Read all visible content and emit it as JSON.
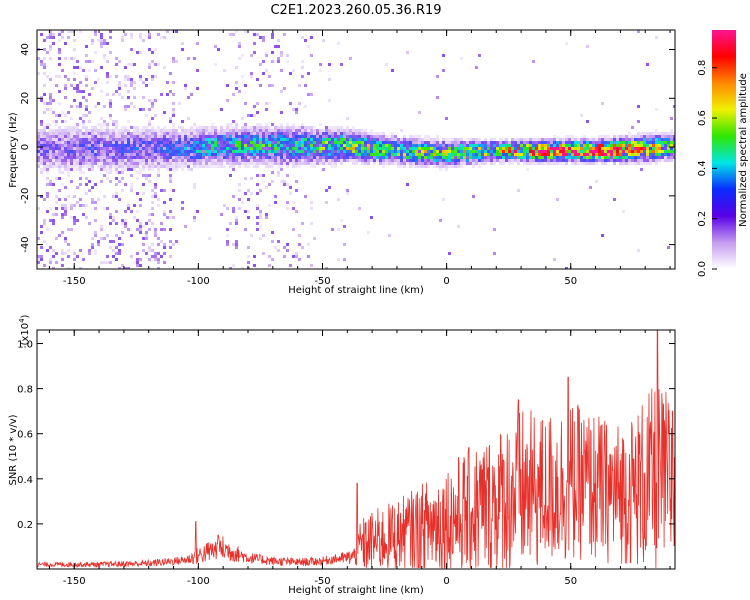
{
  "title": "C2E1.2023.260.05.36.R19",
  "chart_data": [
    {
      "type": "heatmap",
      "xlabel": "Height of straight line (km)",
      "ylabel": "Frequency (Hz)",
      "xlim": [
        -165,
        92
      ],
      "ylim": [
        -50,
        48
      ],
      "xticks": [
        -150,
        -100,
        -50,
        0,
        50
      ],
      "yticks": [
        -40,
        -20,
        0,
        20,
        40
      ],
      "colorbar": {
        "label": "Normalized spectral amplitude",
        "range": [
          0,
          0.95
        ],
        "ticks": [
          "0.0",
          "0.2",
          "0.4",
          "0.6",
          "0.8"
        ],
        "colormap": [
          "#ffffff",
          "#c49bf0",
          "#5a00e6",
          "#0a2bff",
          "#00e5e5",
          "#2ee600",
          "#f0f000",
          "#ff8800",
          "#ff0000",
          "#ff1493"
        ]
      },
      "profile": {
        "x": [
          -165,
          -140,
          -110,
          -90,
          -60,
          -40,
          -20,
          0,
          20,
          40,
          60,
          80,
          92
        ],
        "center_freq_hz": [
          0,
          0,
          0,
          1,
          1,
          1,
          -1,
          -2,
          -1,
          -1,
          -1,
          0,
          1
        ],
        "band_halfwidth_hz": [
          9,
          9,
          8,
          7,
          7,
          6,
          5,
          5,
          4,
          4,
          4,
          5,
          5
        ],
        "peak_amplitude": [
          0.22,
          0.25,
          0.3,
          0.45,
          0.45,
          0.55,
          0.55,
          0.55,
          0.6,
          0.9,
          0.95,
          0.7,
          0.5
        ]
      }
    },
    {
      "type": "line",
      "xlabel": "Height of straight line (km)",
      "ylabel": "SNR (10 * v/v)",
      "y_multiplier": "(x10",
      "y_multiplier_exp": "4",
      "y_multiplier_close": ")",
      "xlim": [
        -165,
        92
      ],
      "ylim": [
        0,
        1.06
      ],
      "xticks": [
        -150,
        -100,
        -50,
        0,
        50
      ],
      "yticks": [
        "0.2",
        "0.4",
        "0.6",
        "0.8",
        "1.0"
      ],
      "color": "#e8302a",
      "series": [
        {
          "x": [
            -165,
            -140,
            -120,
            -105,
            -100,
            -95,
            -90,
            -85,
            -80,
            -70,
            -60,
            -50,
            -45,
            -40,
            -36,
            -35,
            -30,
            -20,
            -10,
            0,
            10,
            20,
            25,
            30,
            35,
            40,
            45,
            50,
            55,
            60,
            65,
            70,
            75,
            80,
            85,
            92
          ],
          "mean": [
            0.02,
            0.02,
            0.025,
            0.04,
            0.06,
            0.08,
            0.09,
            0.07,
            0.05,
            0.035,
            0.03,
            0.035,
            0.045,
            0.05,
            0.06,
            0.1,
            0.12,
            0.15,
            0.18,
            0.22,
            0.25,
            0.3,
            0.32,
            0.34,
            0.34,
            0.35,
            0.37,
            0.38,
            0.38,
            0.36,
            0.34,
            0.34,
            0.35,
            0.38,
            0.4,
            0.38
          ],
          "spread": [
            0.01,
            0.012,
            0.015,
            0.02,
            0.04,
            0.05,
            0.06,
            0.04,
            0.025,
            0.02,
            0.018,
            0.02,
            0.02,
            0.03,
            0.05,
            0.12,
            0.14,
            0.16,
            0.2,
            0.25,
            0.3,
            0.32,
            0.36,
            0.38,
            0.36,
            0.34,
            0.36,
            0.36,
            0.34,
            0.34,
            0.32,
            0.32,
            0.34,
            0.4,
            0.42,
            0.4
          ],
          "peaks": [
            {
              "x": -101,
              "y": 0.21
            },
            {
              "x": -92,
              "y": 0.15
            },
            {
              "x": -36,
              "y": 0.38
            },
            {
              "x": 29,
              "y": 0.75
            },
            {
              "x": 49,
              "y": 0.85
            },
            {
              "x": 85,
              "y": 1.06
            },
            {
              "x": 91,
              "y": 0.7
            }
          ]
        }
      ]
    }
  ]
}
